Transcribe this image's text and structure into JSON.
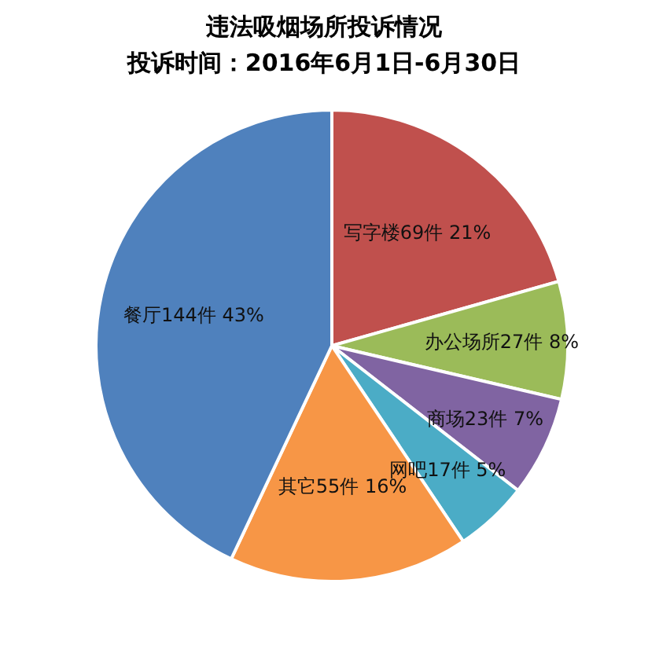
{
  "chart_data": {
    "type": "pie",
    "title": "违法吸烟场所投诉情况",
    "subtitle": "投诉时间：2016年6月1日-6月30日",
    "categories": [
      "写字楼",
      "办公场所",
      "商场",
      "网吧",
      "其它",
      "餐厅"
    ],
    "values": [
      69,
      27,
      23,
      17,
      55,
      144
    ],
    "value_labels": [
      "69件 21%",
      "27件 8%",
      "23件 7%",
      "17件 5%",
      "55件 16%",
      "144件 43%"
    ],
    "colors": [
      "#c0504d",
      "#9bbb59",
      "#8064a2",
      "#4bacc6",
      "#f79646",
      "#4f81bd"
    ],
    "legend": false
  }
}
